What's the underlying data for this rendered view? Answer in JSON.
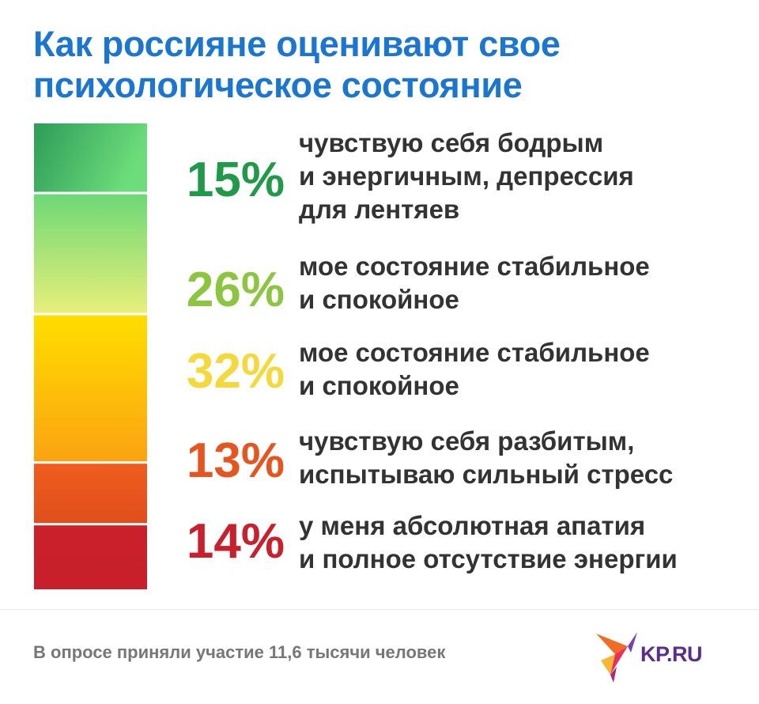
{
  "title": {
    "line1": "Как россияне оценивают свое",
    "line2": "психологическое состояние"
  },
  "chart_data": {
    "type": "bar",
    "orientation": "stacked-vertical",
    "unit": "%",
    "categories": [
      "чувствую себя бодрым и энергичным, депрессия для лентяев",
      "мое состояние стабильное и спокойное",
      "мое состояние стабильное и спокойное",
      "чувствую себя разбитым, испытываю сильный стресс",
      "у меня абсолютная апатия и полное отсутствие энергии"
    ],
    "values": [
      15,
      26,
      32,
      13,
      14
    ],
    "labels": [
      "15%",
      "26%",
      "32%",
      "13%",
      "14%"
    ],
    "colors": [
      "#1f9a49",
      "#8cc63f",
      "#f5d93a",
      "#e8541e",
      "#c8202d"
    ],
    "gradients": [
      [
        "#2e9b58",
        "#6ddd7b"
      ],
      [
        "#6dd877",
        "#e8ef7a"
      ],
      [
        "#ffde00",
        "#fba312"
      ],
      [
        "#f05d1f",
        "#e04e1c"
      ],
      [
        "#ca202c",
        "#c71f2b"
      ]
    ]
  },
  "items": [
    {
      "lines": [
        "чувствую себя бодрым",
        "и энергичным, депрессия",
        "для лентяев"
      ]
    },
    {
      "lines": [
        "мое состояние стабильное",
        "и спокойное"
      ]
    },
    {
      "lines": [
        "мое состояние стабильное",
        "и спокойное"
      ]
    },
    {
      "lines": [
        "чувствую себя разбитым,",
        "испытываю сильный стресс"
      ]
    },
    {
      "lines": [
        "у меня абсолютная апатия",
        "и полное отсутствие энергии"
      ]
    }
  ],
  "footer": {
    "note": "В опросе приняли участие 11,6 тысячи человек",
    "logo": "KP.RU"
  }
}
